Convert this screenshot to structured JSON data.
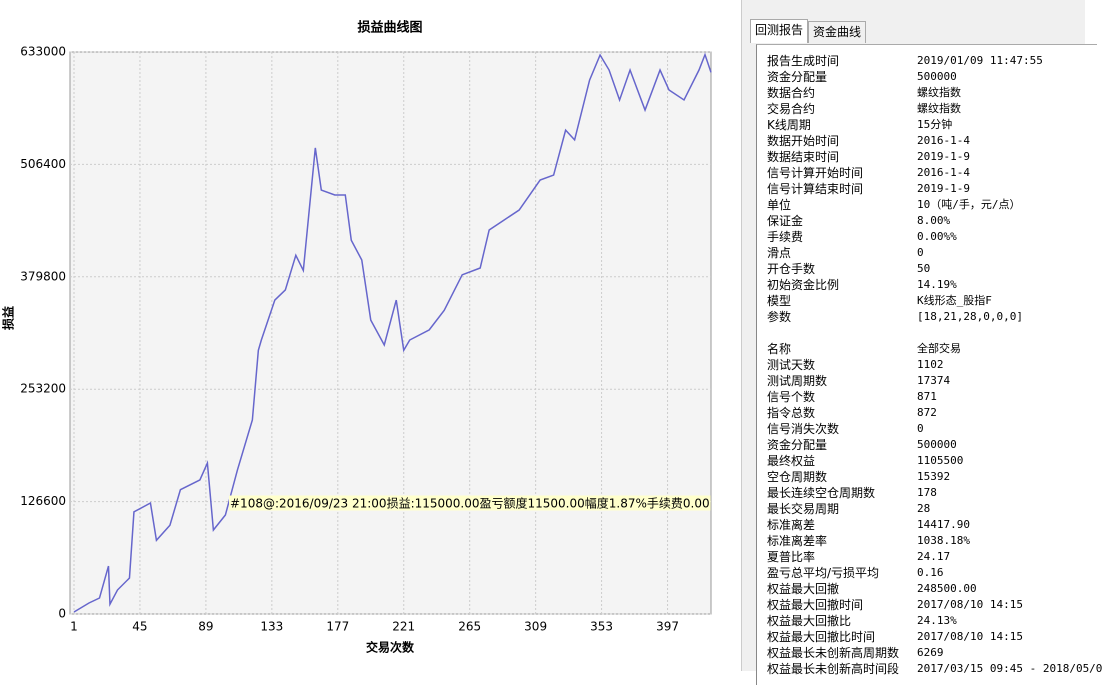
{
  "chart_data": {
    "type": "line",
    "title": "损益曲线图",
    "x_label": "交易次数",
    "y_label": "损益",
    "annotation": "#108@:2016/09/23 21:00损益:115000.00盈亏额度11500.00幅度1.87%手续费0.00",
    "color": "#6666cc",
    "grid": true,
    "x": [
      1,
      11,
      18,
      24,
      25,
      30,
      38,
      41,
      52,
      56,
      65,
      72,
      85,
      90,
      94,
      102,
      110,
      120,
      124,
      126,
      135,
      142,
      149,
      154,
      162,
      166,
      175,
      182,
      186,
      193,
      199,
      208,
      216,
      221,
      225,
      238,
      248,
      260,
      272,
      278,
      288,
      298,
      312,
      321,
      329,
      335,
      345,
      352,
      358,
      365,
      372,
      382,
      392,
      398,
      408,
      418,
      422,
      426
    ],
    "values": [
      2250,
      12400,
      18000,
      54000,
      11000,
      27000,
      40500,
      115000,
      125000,
      83000,
      100000,
      140000,
      151000,
      170000,
      94600,
      111500,
      162000,
      218500,
      297000,
      308600,
      353600,
      365000,
      404000,
      387000,
      525000,
      477500,
      472000,
      472000,
      421000,
      398700,
      331000,
      303000,
      353600,
      297000,
      308600,
      320000,
      342000,
      382000,
      389700,
      432500,
      443800,
      455000,
      488800,
      494400,
      545000,
      534000,
      601400,
      629600,
      612700,
      579000,
      612700,
      567600,
      612700,
      590200,
      579000,
      612700,
      630000,
      610000
    ],
    "xlim": [
      1,
      426
    ],
    "xticks": [
      1,
      45,
      89,
      133,
      177,
      221,
      265,
      309,
      353,
      397
    ],
    "ylim": [
      0,
      633000
    ],
    "yticks": [
      0,
      126600,
      253200,
      379800,
      506400,
      633000
    ]
  },
  "report": {
    "tabs": [
      "回测报告",
      "资金曲线"
    ],
    "rows": [
      [
        "报告生成时间",
        "2019/01/09 11:47:55"
      ],
      [
        "资金分配量",
        "500000"
      ],
      [
        "数据合约",
        "螺纹指数"
      ],
      [
        "交易合约",
        "螺纹指数"
      ],
      [
        "K线周期",
        "15分钟"
      ],
      [
        "数据开始时间",
        "2016-1-4"
      ],
      [
        "数据结束时间",
        "2019-1-9"
      ],
      [
        "信号计算开始时间",
        "2016-1-4"
      ],
      [
        "信号计算结束时间",
        "2019-1-9"
      ],
      [
        "单位",
        "10（吨/手，元/点）"
      ],
      [
        "保证金",
        "8.00%"
      ],
      [
        "手续费",
        "0.00%%"
      ],
      [
        "滑点",
        "0"
      ],
      [
        "开仓手数",
        "50"
      ],
      [
        "初始资金比例",
        "14.19%"
      ],
      [
        "模型",
        "K线形态_股指F"
      ],
      [
        "参数",
        "[18,21,28,0,0,0]"
      ]
    ],
    "stats": [
      [
        "名称",
        "全部交易"
      ],
      [
        "测试天数",
        "1102"
      ],
      [
        "测试周期数",
        "17374"
      ],
      [
        "信号个数",
        "871"
      ],
      [
        "指令总数",
        "872"
      ],
      [
        "信号消失次数",
        "0"
      ],
      [
        "资金分配量",
        "500000"
      ],
      [
        "最终权益",
        "1105500"
      ],
      [
        "空仓周期数",
        "15392"
      ],
      [
        "最长连续空仓周期数",
        "178"
      ],
      [
        "最长交易周期",
        "28"
      ],
      [
        "标准离差",
        "14417.90"
      ],
      [
        "标准离差率",
        "1038.18%"
      ],
      [
        "夏普比率",
        "24.17"
      ],
      [
        "盈亏总平均/亏损平均",
        "0.16"
      ],
      [
        "权益最大回撤",
        "248500.00"
      ],
      [
        "权益最大回撤时间",
        "2017/08/10 14:15"
      ],
      [
        "权益最大回撤比",
        "24.13%"
      ],
      [
        "权益最大回撤比时间",
        "2017/08/10 14:15"
      ],
      [
        "权益最长未创新高周期数",
        "6269"
      ],
      [
        "权益最长未创新高时间段",
        "2017/03/15 09:45 - 2018/05/0"
      ]
    ]
  }
}
